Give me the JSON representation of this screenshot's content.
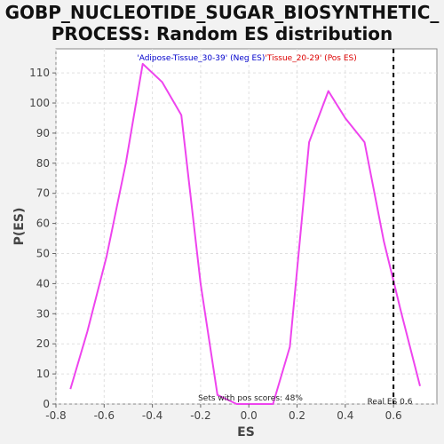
{
  "title_line1": "GOBP_NUCLEOTIDE_SUGAR_BIOSYNTHETIC_",
  "title_line2": "PROCESS: Random ES distribution",
  "legend": {
    "neg_label": "'Adipose-Tissue_30-39' (Neg ES)",
    "pos_label": "'Tissue_20-29' (Pos ES)",
    "neg_color": "#0000cc",
    "pos_color": "#dd0000"
  },
  "annotation_pos_scores": "Sets with pos scores: 48%",
  "annotation_real_es": "Real ES 0.6",
  "chart_data": {
    "type": "line",
    "xlabel": "ES",
    "ylabel": "P(ES)",
    "xlim": [
      -0.8,
      0.78
    ],
    "ylim": [
      0,
      118
    ],
    "xticks": [
      -0.8,
      -0.6,
      -0.4,
      -0.2,
      0.0,
      0.2,
      0.4,
      0.6
    ],
    "xtick_labels": [
      "-0.8",
      "-0.6",
      "-0.4",
      "-0.2",
      "0.0",
      "0.2",
      "0.4",
      "0.6"
    ],
    "yticks": [
      0,
      10,
      20,
      30,
      40,
      50,
      60,
      70,
      80,
      90,
      100,
      110
    ],
    "ytick_labels": [
      "0",
      "10",
      "20",
      "30",
      "40",
      "50",
      "60",
      "70",
      "80",
      "90",
      "100",
      "110"
    ],
    "grid": true,
    "series": [
      {
        "color": "#ee44ee",
        "x": [
          -0.74,
          -0.67,
          -0.59,
          -0.51,
          -0.44,
          -0.36,
          -0.28,
          -0.2,
          -0.13,
          -0.05,
          0.03,
          0.1,
          0.17,
          0.25,
          0.33,
          0.4,
          0.48,
          0.56,
          0.63,
          0.71
        ],
        "y": [
          5,
          24,
          49,
          80,
          113,
          107,
          96,
          40,
          3,
          0,
          0,
          0,
          19,
          87,
          104,
          95,
          87,
          54,
          31,
          6
        ]
      }
    ],
    "real_es": 0.6,
    "real_es_color": "#000000"
  }
}
